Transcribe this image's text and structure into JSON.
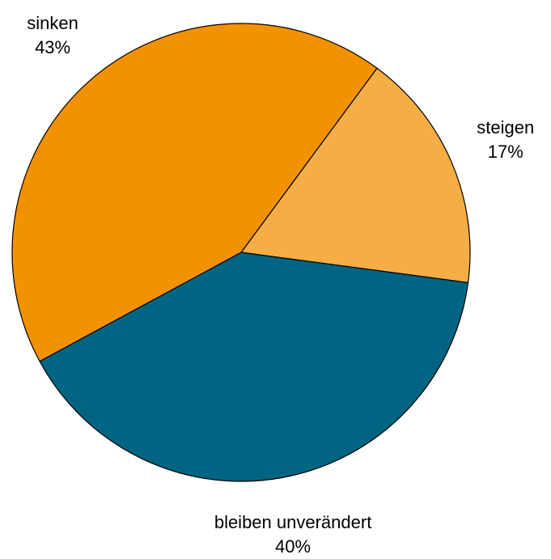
{
  "chart_data": {
    "type": "pie",
    "categories": [
      "steigen",
      "bleiben unverändert",
      "sinken"
    ],
    "values": [
      17,
      40,
      43
    ],
    "value_labels": [
      "17%",
      "40%",
      "43%"
    ],
    "colors": [
      "#f5ad45",
      "#006482",
      "#f39200"
    ]
  }
}
